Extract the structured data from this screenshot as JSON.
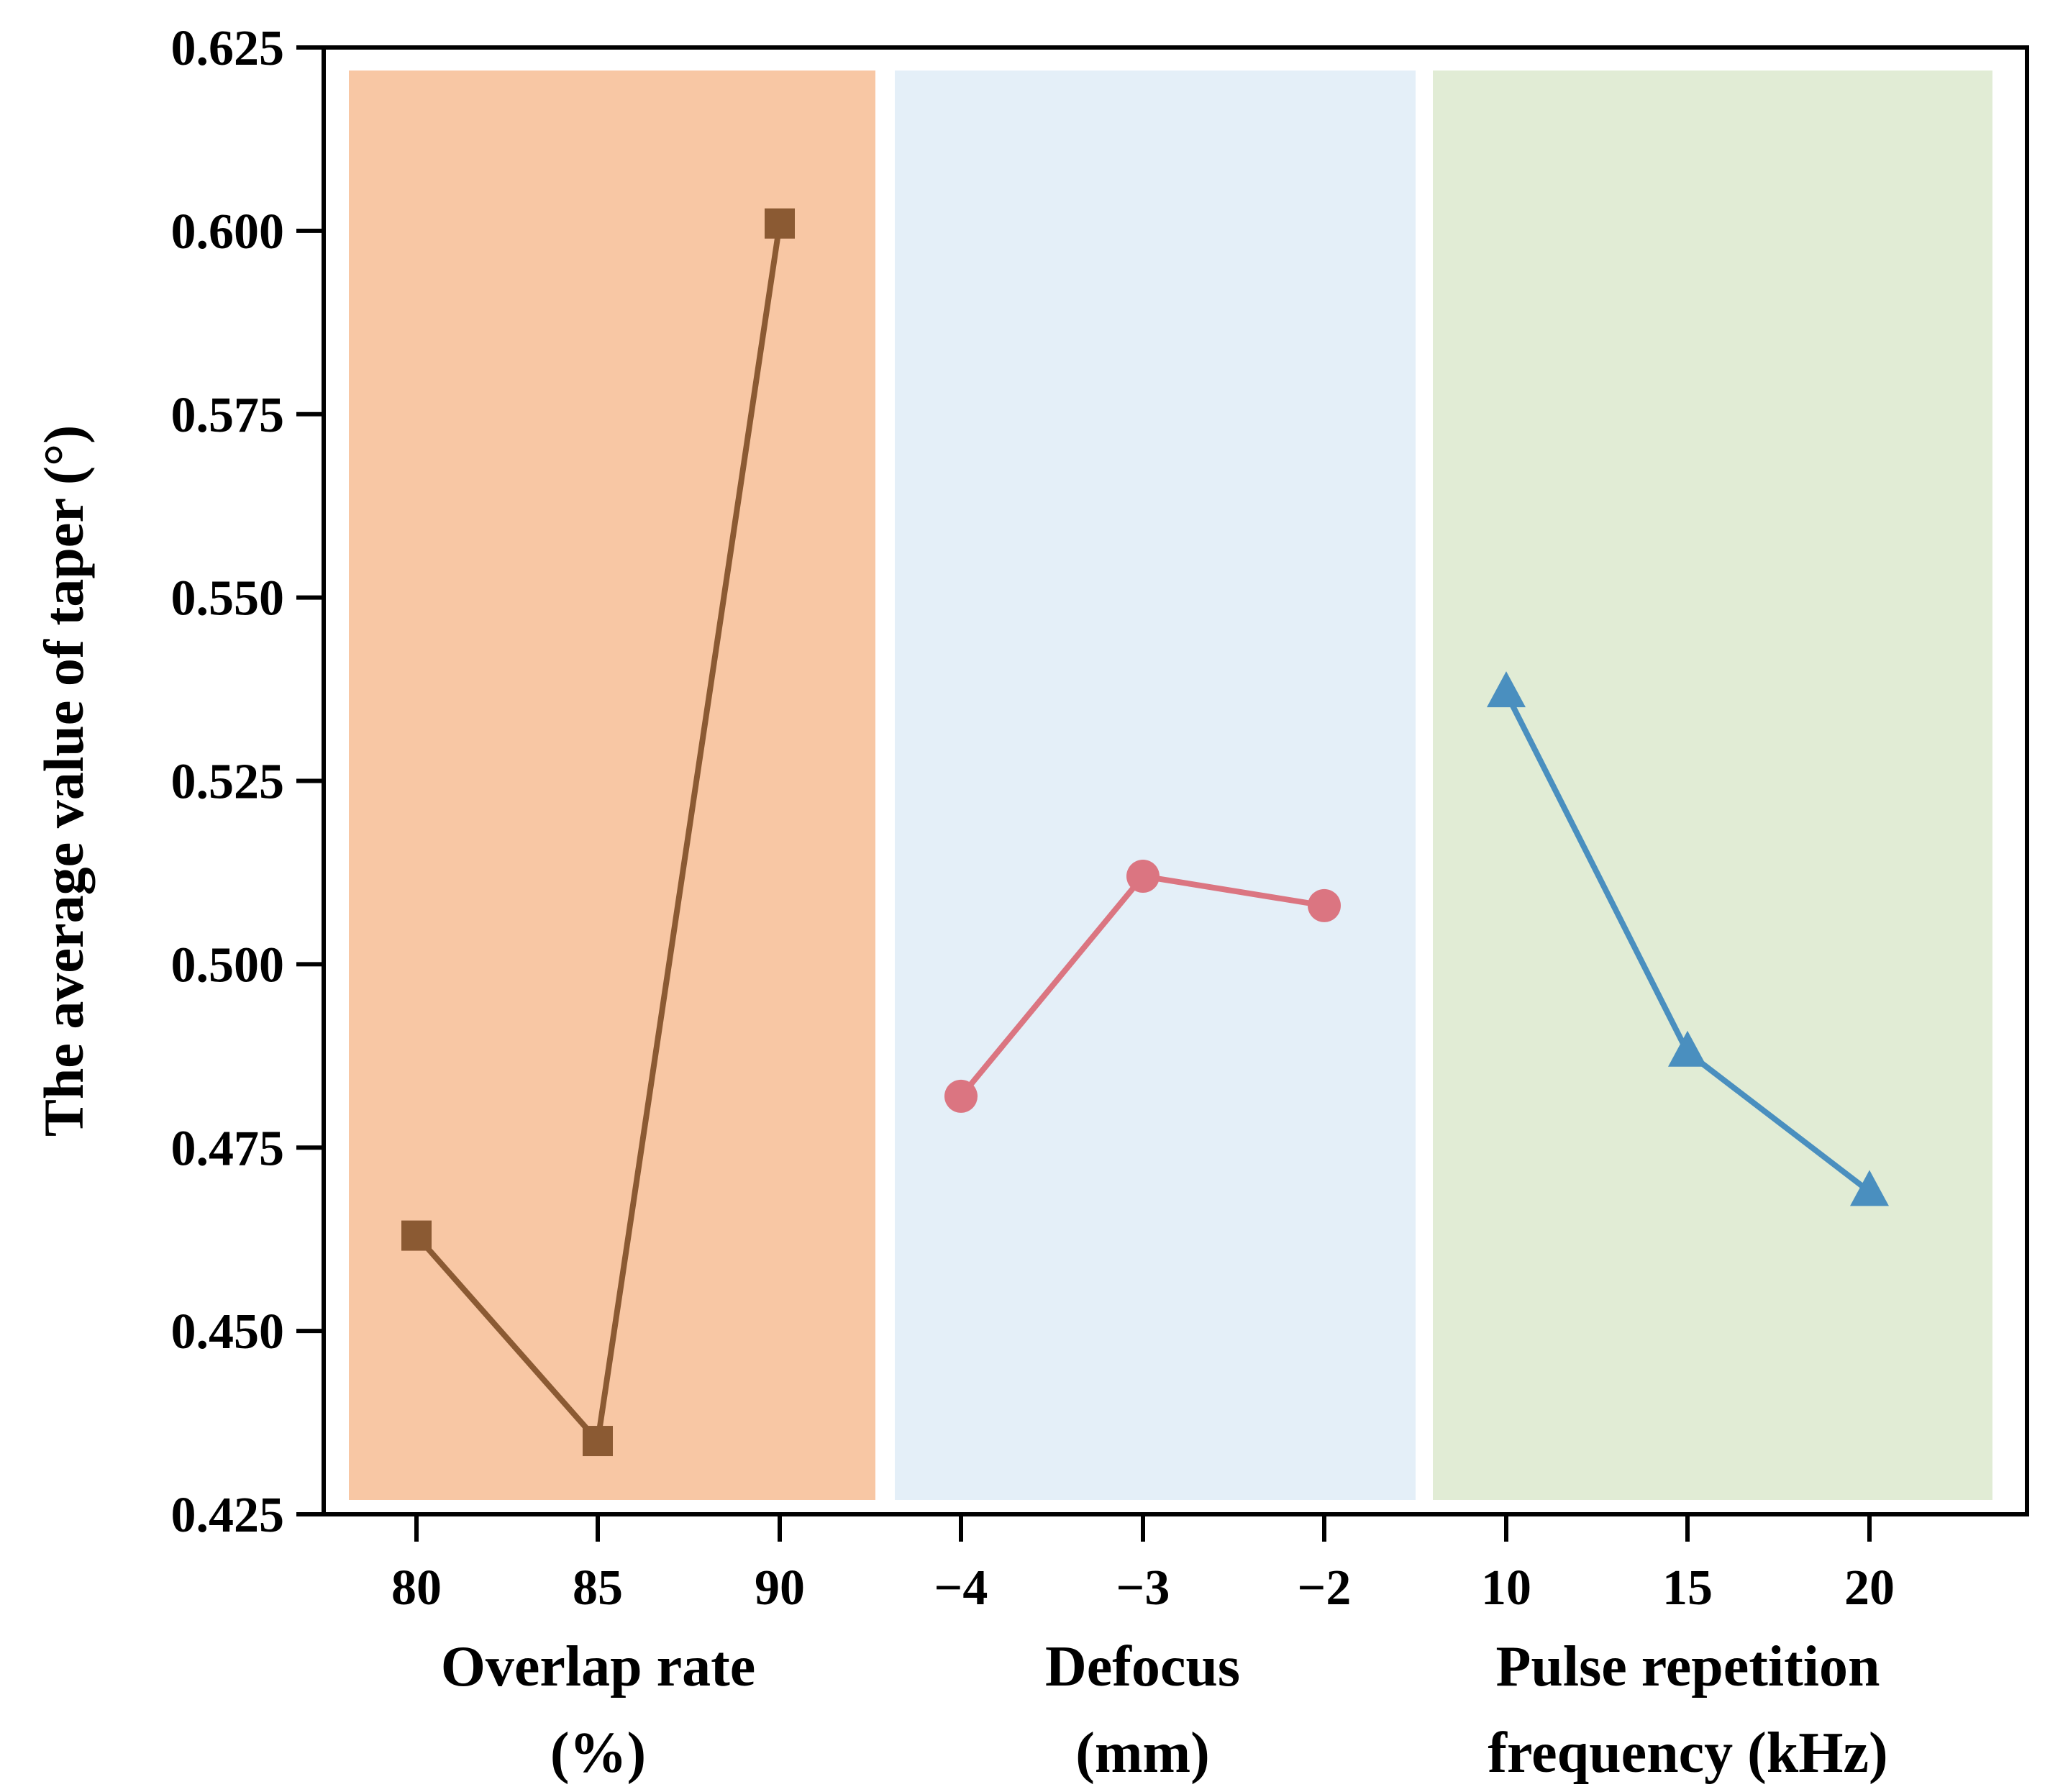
{
  "chart_data": {
    "type": "line",
    "ylabel": "The average value of taper (°)",
    "ylim": [
      0.425,
      0.625
    ],
    "yticks": [
      "0.425",
      "0.450",
      "0.475",
      "0.500",
      "0.525",
      "0.550",
      "0.575",
      "0.600",
      "0.625"
    ],
    "grid": false,
    "groups": [
      {
        "name": "Overlap rate",
        "title_line1": "Overlap rate",
        "title_line2": "(%)",
        "categories": [
          "80",
          "85",
          "90"
        ],
        "values": [
          0.463,
          0.435,
          0.601
        ],
        "marker": "square",
        "color": "#8B5A33",
        "background": "#F8C7A4"
      },
      {
        "name": "Defocus",
        "title_line1": "Defocus",
        "title_line2": "(mm)",
        "categories": [
          "−4",
          "−3",
          "−2"
        ],
        "values": [
          0.482,
          0.512,
          0.508
        ],
        "marker": "circle",
        "color": "#DB7581",
        "background": "#E4EFF8"
      },
      {
        "name": "Pulse repetition frequency",
        "title_line1": "Pulse repetition",
        "title_line2": "frequency (kHz)",
        "categories": [
          "10",
          "15",
          "20"
        ],
        "values": [
          0.537,
          0.488,
          0.469
        ],
        "marker": "triangle",
        "color": "#4A8FBF",
        "background": "#E1ECD5"
      }
    ]
  }
}
